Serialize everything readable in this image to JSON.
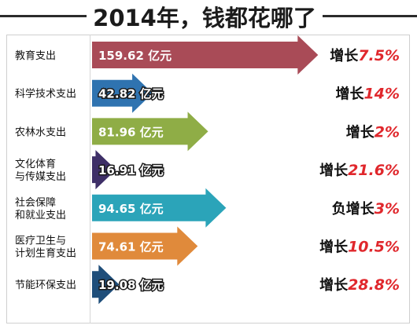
{
  "chart_data": {
    "type": "bar",
    "title": "2014年，钱都花哪了",
    "categories": [
      [
        "教育支出"
      ],
      [
        "科学技术支出"
      ],
      [
        "农林水支出"
      ],
      [
        "文化体育",
        "与传媒支出"
      ],
      [
        "社会保障",
        "和就业支出"
      ],
      [
        "医疗卫生与",
        "计划生育支出"
      ],
      [
        "节能环保支出"
      ]
    ],
    "values": [
      159.62,
      42.82,
      81.96,
      16.91,
      94.65,
      74.61,
      19.08
    ],
    "value_labels": [
      "159.62 亿元",
      "42.82 亿元",
      "81.96 亿元",
      "16.91 亿元",
      "94.65 亿元",
      "74.61 亿元",
      "19.08 亿元"
    ],
    "growth_prefix": [
      "增长",
      "增长",
      "增长",
      "增长",
      "负增长",
      "增长",
      "增长"
    ],
    "growth_values": [
      "7.5%",
      "14%",
      "2%",
      "21.6%",
      "3%",
      "10.5%",
      "28.8%"
    ],
    "colors": [
      "#a94b57",
      "#2f73b0",
      "#8fad46",
      "#3e2f67",
      "#2ba4b9",
      "#e08a3b",
      "#1f4e7a"
    ],
    "value_text_colors": [
      "#ffffff",
      "#ffffff",
      "#ffffff",
      "#ffffff",
      "#ffffff",
      "#ffffff",
      "#ffffff"
    ],
    "unit": "亿元"
  }
}
